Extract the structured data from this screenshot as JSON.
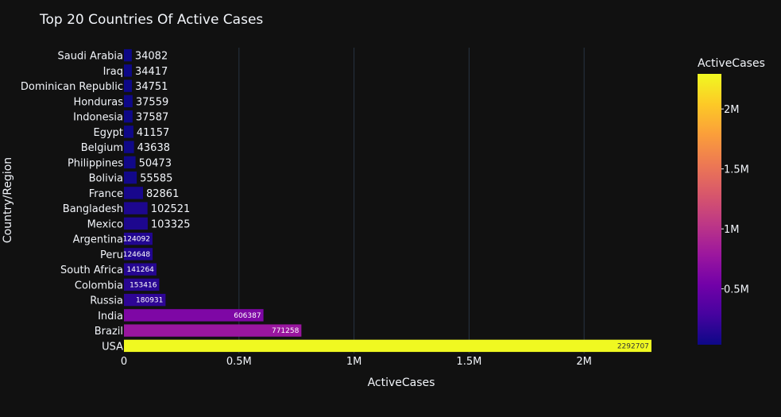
{
  "chart_data": {
    "type": "bar",
    "orientation": "horizontal",
    "title": "Top 20 Countries Of Active Cases",
    "xlabel": "ActiveCases",
    "ylabel": "Country/Region",
    "xlim": [
      0,
      2400000
    ],
    "xticks": [
      {
        "value": 0,
        "label": "0"
      },
      {
        "value": 500000,
        "label": "0.5M"
      },
      {
        "value": 1000000,
        "label": "1M"
      },
      {
        "value": 1500000,
        "label": "1.5M"
      },
      {
        "value": 2000000,
        "label": "2M"
      }
    ],
    "grid": true,
    "categories": [
      "USA",
      "Brazil",
      "India",
      "Russia",
      "Colombia",
      "South Africa",
      "Peru",
      "Argentina",
      "Mexico",
      "Bangladesh",
      "France",
      "Bolivia",
      "Philippines",
      "Belgium",
      "Egypt",
      "Indonesia",
      "Honduras",
      "Dominican Republic",
      "Iraq",
      "Saudi Arabia"
    ],
    "values": [
      2292707,
      771258,
      606387,
      180931,
      153416,
      141264,
      124648,
      124092,
      103325,
      102521,
      82861,
      55585,
      50473,
      43638,
      41157,
      37587,
      37559,
      34751,
      34417,
      34082
    ],
    "colorbar": {
      "title": "ActiveCases",
      "range": [
        34082,
        2292707
      ],
      "ticks": [
        {
          "value": 500000,
          "label": "0.5M"
        },
        {
          "value": 1000000,
          "label": "1M"
        },
        {
          "value": 1500000,
          "label": "1.5M"
        },
        {
          "value": 2000000,
          "label": "2M"
        }
      ],
      "colorscale": [
        "#0d0887",
        "#46039f",
        "#7201a8",
        "#9c179e",
        "#bd3786",
        "#d8576b",
        "#ed7953",
        "#fb9f3a",
        "#fdca26",
        "#f0f921"
      ]
    }
  }
}
